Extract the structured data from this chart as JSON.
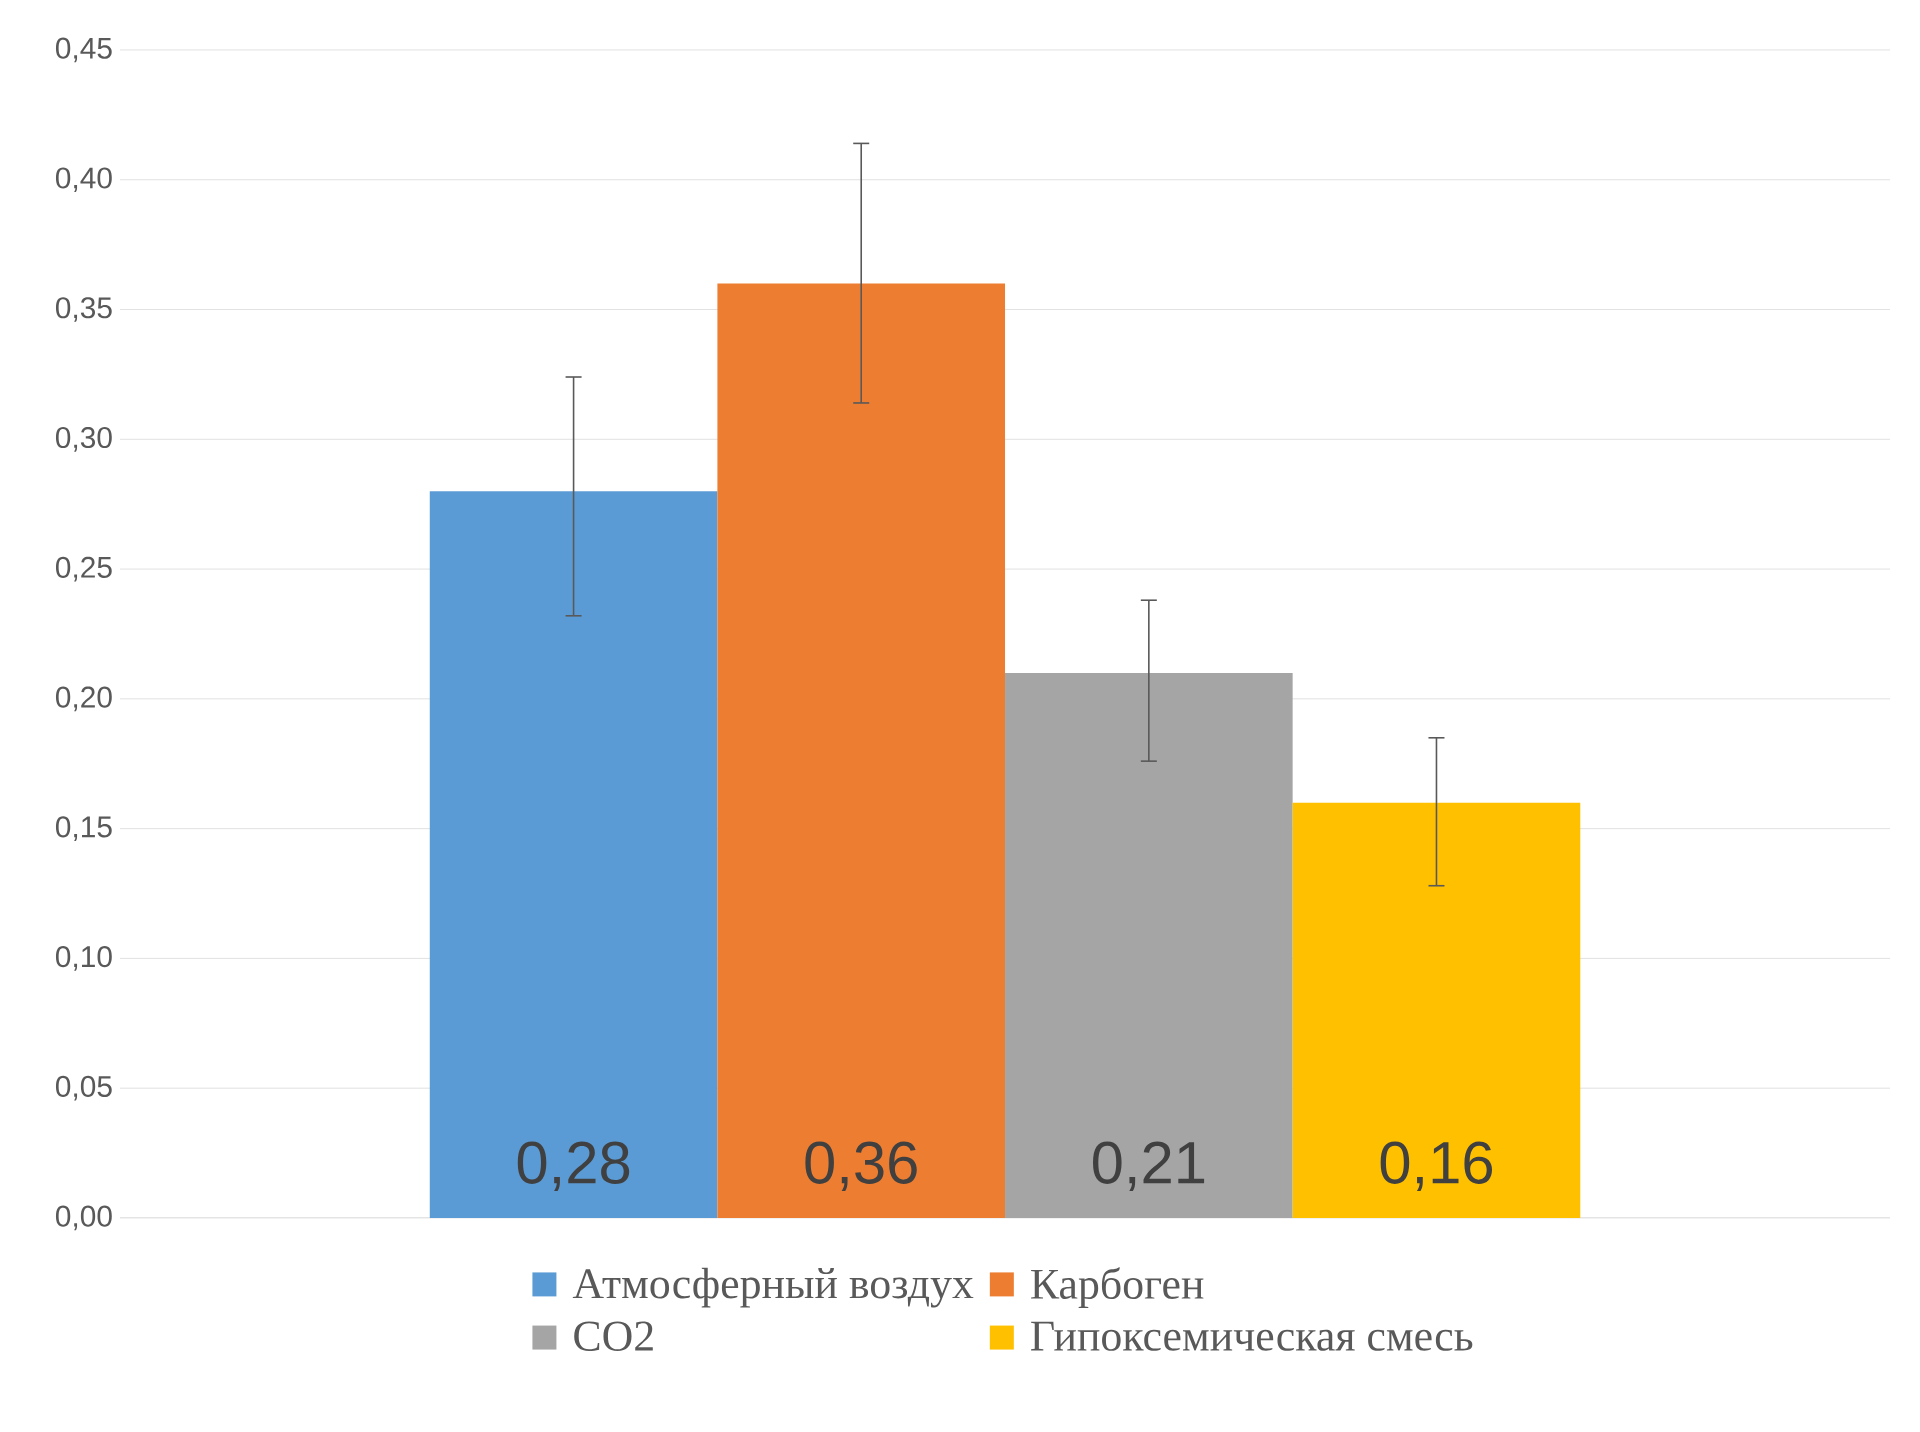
{
  "chart_data": {
    "type": "bar",
    "categories": [
      null
    ],
    "series": [
      {
        "name": "Атмосферный воздух",
        "color": "#5b9bd5",
        "values": [
          0.28
        ],
        "errors": [
          [
            0.232,
            0.324
          ]
        ],
        "value_labels": [
          "0,28"
        ]
      },
      {
        "name": "Карбоген",
        "color": "#ed7d31",
        "values": [
          0.36
        ],
        "errors": [
          [
            0.314,
            0.414
          ]
        ],
        "value_labels": [
          "0,36"
        ]
      },
      {
        "name": "CO2",
        "color": "#a5a5a5",
        "values": [
          0.21
        ],
        "errors": [
          [
            0.176,
            0.238
          ]
        ],
        "value_labels": [
          "0,21"
        ]
      },
      {
        "name": "Гипоксемическая смесь",
        "color": "#ffc000",
        "values": [
          0.16
        ],
        "errors": [
          [
            0.128,
            0.185
          ]
        ],
        "value_labels": [
          "0,16"
        ]
      }
    ],
    "ylim": [
      0,
      0.45
    ],
    "yticks": [
      {
        "value": 0,
        "label": "0,00"
      },
      {
        "value": 0.05,
        "label": "0,05"
      },
      {
        "value": 0.1,
        "label": "0,10"
      },
      {
        "value": 0.15,
        "label": "0,15"
      },
      {
        "value": 0.2,
        "label": "0,20"
      },
      {
        "value": 0.25,
        "label": "0,25"
      },
      {
        "value": 0.3,
        "label": "0,30"
      },
      {
        "value": 0.35,
        "label": "0,35"
      },
      {
        "value": 0.4,
        "label": "0,40"
      },
      {
        "value": 0.45,
        "label": "0,45"
      }
    ],
    "grid": "y",
    "legend": "bottom"
  }
}
